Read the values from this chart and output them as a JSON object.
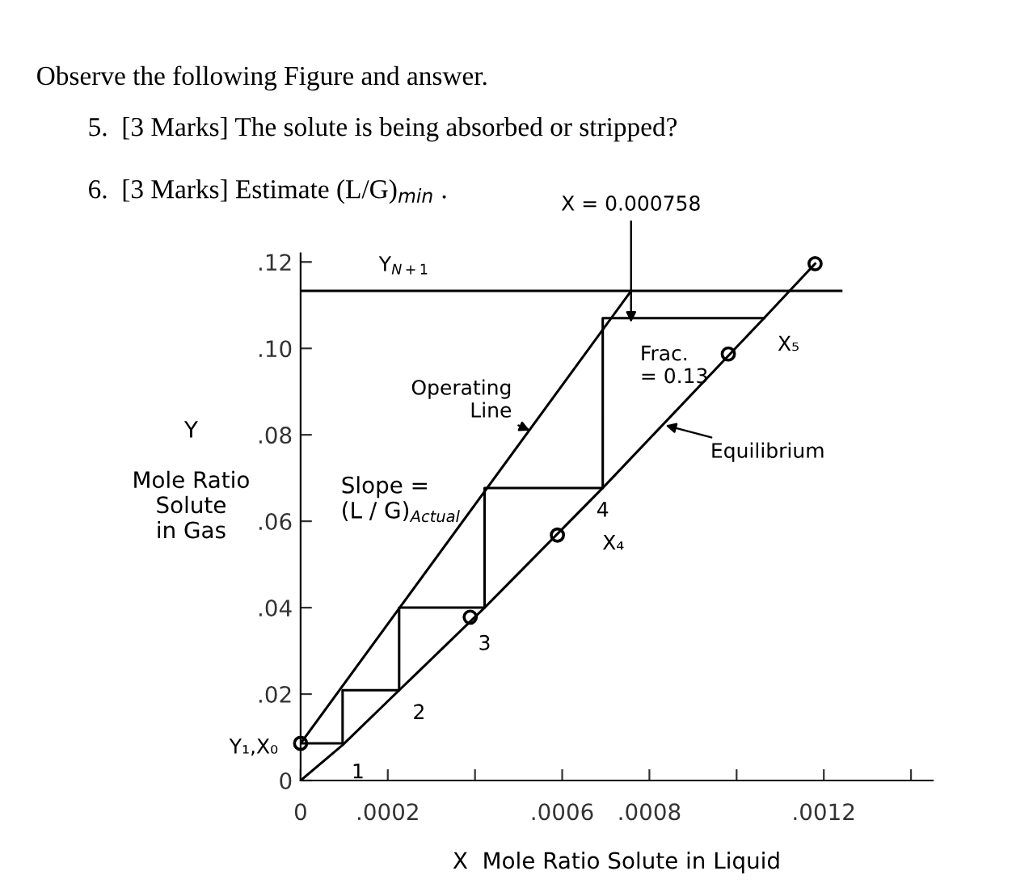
{
  "chart_data": {
    "type": "line",
    "title": "Observe the following Figure and answer.",
    "xlabel": "X  Mole Ratio Solute in Liquid",
    "ylabel": "Y\n\nMole Ratio\nSolute\nin Gas",
    "xlim": [
      0,
      0.00145
    ],
    "ylim": [
      0,
      0.122
    ],
    "xticks": [
      {
        "value": 0,
        "label": "0"
      },
      {
        "value": 0.0002,
        "label": ".0002"
      },
      {
        "value": 0.0004,
        "label": null
      },
      {
        "value": 0.0006,
        "label": ".0006"
      },
      {
        "value": 0.0008,
        "label": ".0008"
      },
      {
        "value": 0.001,
        "label": null
      },
      {
        "value": 0.0012,
        "label": ".0012"
      },
      {
        "value": 0.0014,
        "label": null
      }
    ],
    "yticks": [
      {
        "value": 0,
        "label": "0"
      },
      {
        "value": 0.02,
        "label": ".02"
      },
      {
        "value": 0.04,
        "label": ".04"
      },
      {
        "value": 0.06,
        "label": ".06"
      },
      {
        "value": 0.08,
        "label": ".08"
      },
      {
        "value": 0.1,
        "label": ".10"
      },
      {
        "value": 0.12,
        "label": ".12"
      }
    ],
    "grid": false,
    "legend": false,
    "series": [
      {
        "color": "#000000",
        "x": [
          0,
          0.000758
        ],
        "values": [
          0.0086,
          0.1133
        ]
      },
      {
        "color": "#000000",
        "x": [
          0,
          9.63e-05,
          0.000226,
          0.000422,
          0.000693,
          0.001063,
          0.00118
        ],
        "values": [
          0,
          0.0082,
          0.0209,
          0.04,
          0.0677,
          0.107,
          0.1196
        ]
      },
      {
        "color": "#000000",
        "x": [
          0,
          9.63e-05,
          9.63e-05,
          0.000226,
          0.000226,
          0.000422,
          0.000422,
          0.000693,
          0.000693,
          0.001063
        ],
        "values": [
          0.0086,
          0.0086,
          0.0209,
          0.0209,
          0.04,
          0.04,
          0.0677,
          0.0677,
          0.107,
          0.107
        ]
      },
      {
        "color": "#000000",
        "x": [
          0,
          0.00124
        ],
        "values": [
          0.1133,
          0.1133
        ]
      },
      {
        "type": "scatter",
        "color": "#000000",
        "marker": "circle",
        "x": [
          0,
          0.000389,
          0.000589,
          0.000981,
          0.00118
        ],
        "values": [
          0.0086,
          0.0378,
          0.0568,
          0.0987,
          0.1196
        ]
      }
    ],
    "annotations": [
      "5.  [3 Marks] The solute is being absorbed or stripped?",
      "6.  [3 Marks] Estimate (L/G)$_{min}$ .",
      {
        "text": "Y$_{N+1}$",
        "x": 0.000237,
        "y": 0.1133
      },
      {
        "text": "X = 0.000758",
        "x": 0.000758,
        "y": 0.106
      },
      {
        "text": "Frac.\n= 0.13",
        "x": 0.000758,
        "y": 0.107
      },
      {
        "text": "Operating\nLine",
        "x": 0.000526,
        "y": 0.081
      },
      "Slope =\n(L / G)$_{Actual}$",
      {
        "text": "Equilibrium",
        "x": 0.000837,
        "y": 0.0822
      },
      {
        "text": "1",
        "x": 9.63e-05,
        "y": 0.0082
      },
      {
        "text": "2",
        "x": 0.000226,
        "y": 0.0209
      },
      {
        "text": "3",
        "x": 0.000422,
        "y": 0.04
      },
      {
        "text": "4",
        "x": 0.000693,
        "y": 0.0677
      },
      {
        "text": "X₄",
        "x": 0.000589,
        "y": 0.0568
      },
      {
        "text": "X₅",
        "x": 0.001063,
        "y": 0.107
      },
      {
        "text": "Y₁,X₀",
        "x": 0,
        "y": 0.0086
      }
    ]
  }
}
